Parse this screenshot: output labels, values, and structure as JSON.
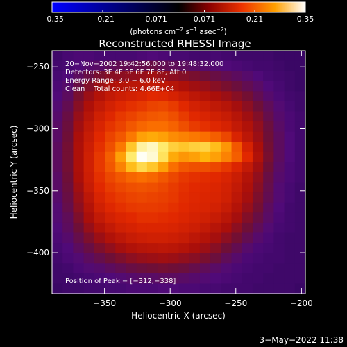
{
  "chart_data": {
    "type": "heatmap",
    "title": "Reconstructed RHESSI Image",
    "xlabel": "Heliocentric X (arcsec)",
    "ylabel": "Heliocentric Y (arcsec)",
    "xlim": [
      -390,
      -197
    ],
    "ylim": [
      -433,
      -237
    ],
    "x_ticks": [
      {
        "value": -350,
        "label": "−350"
      },
      {
        "value": -300,
        "label": "−300"
      },
      {
        "value": -250,
        "label": "−250"
      },
      {
        "value": -200,
        "label": "−200"
      }
    ],
    "y_ticks": [
      {
        "value": -250,
        "label": "−250"
      },
      {
        "value": -300,
        "label": "−300"
      },
      {
        "value": -350,
        "label": "−350"
      },
      {
        "value": -400,
        "label": "−400"
      }
    ],
    "colorbar": {
      "range": [
        -0.35,
        0.35
      ],
      "ticks": [
        {
          "value": -0.35,
          "label": "−0.35"
        },
        {
          "value": -0.21,
          "label": "−0.21"
        },
        {
          "value": -0.071,
          "label": "−0.071"
        },
        {
          "value": 0.071,
          "label": "0.071"
        },
        {
          "value": 0.21,
          "label": "0.21"
        },
        {
          "value": 0.35,
          "label": "0.35"
        }
      ],
      "units": {
        "base": "(photons cm",
        "exp1": "−2",
        "mid1": " s",
        "exp2": "−1",
        "mid2": " asec",
        "exp3": "−2",
        "end": ")"
      }
    },
    "annotations": [
      "20−Nov−2002 19:42:56.000 to 19:48:32.000",
      "Detectors: 3F 4F 5F 6F 7F 8F, Att 0",
      "Energy Range: 3.0 − 6.0 keV",
      "Clean    Total counts: 4.66E+04"
    ],
    "peak_label": "Position of Peak = [−312,−338]",
    "peak": [
      -312,
      -338
    ],
    "source_center": [
      -300,
      -335
    ],
    "source_radius": 100,
    "image_intensity": [
      [
        0.04,
        0.06,
        0.07,
        0.07,
        0.06,
        0.06,
        0.06,
        0.06,
        0.07,
        0.08,
        0.07,
        0.06,
        0.06,
        0.05,
        0.05,
        0.06,
        0.05,
        0.04,
        0.04,
        0.04,
        0.04,
        0.03,
        0.03,
        0.03
      ],
      [
        0.05,
        0.06,
        0.08,
        0.1,
        0.11,
        0.13,
        0.14,
        0.14,
        0.15,
        0.16,
        0.14,
        0.13,
        0.12,
        0.11,
        0.1,
        0.09,
        0.08,
        0.07,
        0.06,
        0.05,
        0.05,
        0.04,
        0.03,
        0.03
      ],
      [
        0.06,
        0.08,
        0.12,
        0.16,
        0.2,
        0.23,
        0.24,
        0.25,
        0.26,
        0.28,
        0.26,
        0.24,
        0.22,
        0.2,
        0.18,
        0.16,
        0.14,
        0.12,
        0.1,
        0.08,
        0.06,
        0.05,
        0.04,
        0.03
      ],
      [
        0.07,
        0.1,
        0.16,
        0.22,
        0.27,
        0.31,
        0.33,
        0.35,
        0.36,
        0.38,
        0.37,
        0.34,
        0.31,
        0.28,
        0.26,
        0.23,
        0.2,
        0.17,
        0.14,
        0.11,
        0.08,
        0.06,
        0.04,
        0.03
      ],
      [
        0.08,
        0.12,
        0.2,
        0.27,
        0.33,
        0.38,
        0.41,
        0.43,
        0.45,
        0.48,
        0.47,
        0.44,
        0.4,
        0.36,
        0.33,
        0.3,
        0.27,
        0.23,
        0.19,
        0.14,
        0.1,
        0.07,
        0.05,
        0.04
      ],
      [
        0.09,
        0.14,
        0.23,
        0.31,
        0.38,
        0.43,
        0.47,
        0.5,
        0.52,
        0.55,
        0.56,
        0.53,
        0.48,
        0.43,
        0.4,
        0.37,
        0.34,
        0.29,
        0.24,
        0.18,
        0.13,
        0.09,
        0.06,
        0.04
      ],
      [
        0.1,
        0.16,
        0.26,
        0.34,
        0.42,
        0.47,
        0.52,
        0.55,
        0.58,
        0.6,
        0.61,
        0.58,
        0.53,
        0.48,
        0.45,
        0.42,
        0.39,
        0.34,
        0.28,
        0.22,
        0.15,
        0.1,
        0.07,
        0.05
      ],
      [
        0.11,
        0.17,
        0.28,
        0.37,
        0.45,
        0.51,
        0.55,
        0.6,
        0.64,
        0.66,
        0.66,
        0.63,
        0.58,
        0.53,
        0.5,
        0.47,
        0.44,
        0.38,
        0.32,
        0.25,
        0.17,
        0.11,
        0.07,
        0.05
      ],
      [
        0.11,
        0.18,
        0.3,
        0.39,
        0.48,
        0.55,
        0.6,
        0.68,
        0.76,
        0.78,
        0.76,
        0.72,
        0.7,
        0.68,
        0.66,
        0.62,
        0.56,
        0.45,
        0.36,
        0.27,
        0.18,
        0.12,
        0.08,
        0.05
      ],
      [
        0.12,
        0.19,
        0.31,
        0.41,
        0.5,
        0.58,
        0.68,
        0.84,
        0.95,
        0.97,
        0.92,
        0.86,
        0.84,
        0.86,
        0.87,
        0.82,
        0.74,
        0.6,
        0.44,
        0.3,
        0.19,
        0.12,
        0.08,
        0.05
      ],
      [
        0.12,
        0.19,
        0.31,
        0.42,
        0.52,
        0.62,
        0.76,
        0.92,
        1.0,
        0.98,
        0.9,
        0.78,
        0.74,
        0.76,
        0.8,
        0.76,
        0.7,
        0.62,
        0.48,
        0.32,
        0.2,
        0.12,
        0.08,
        0.05
      ],
      [
        0.12,
        0.19,
        0.31,
        0.42,
        0.52,
        0.6,
        0.7,
        0.82,
        0.88,
        0.84,
        0.76,
        0.66,
        0.6,
        0.58,
        0.58,
        0.56,
        0.52,
        0.46,
        0.38,
        0.28,
        0.18,
        0.11,
        0.07,
        0.05
      ],
      [
        0.11,
        0.18,
        0.3,
        0.41,
        0.5,
        0.56,
        0.6,
        0.64,
        0.66,
        0.64,
        0.6,
        0.56,
        0.52,
        0.5,
        0.49,
        0.48,
        0.45,
        0.4,
        0.33,
        0.25,
        0.16,
        0.1,
        0.07,
        0.05
      ],
      [
        0.11,
        0.17,
        0.28,
        0.39,
        0.48,
        0.53,
        0.56,
        0.58,
        0.59,
        0.58,
        0.56,
        0.53,
        0.5,
        0.48,
        0.47,
        0.46,
        0.43,
        0.38,
        0.31,
        0.23,
        0.15,
        0.09,
        0.06,
        0.04
      ],
      [
        0.1,
        0.16,
        0.26,
        0.36,
        0.45,
        0.5,
        0.53,
        0.55,
        0.56,
        0.55,
        0.54,
        0.52,
        0.49,
        0.47,
        0.46,
        0.45,
        0.42,
        0.36,
        0.29,
        0.21,
        0.14,
        0.09,
        0.06,
        0.04
      ],
      [
        0.09,
        0.15,
        0.24,
        0.33,
        0.42,
        0.47,
        0.5,
        0.52,
        0.53,
        0.53,
        0.52,
        0.5,
        0.48,
        0.46,
        0.45,
        0.43,
        0.39,
        0.33,
        0.26,
        0.19,
        0.12,
        0.08,
        0.05,
        0.04
      ],
      [
        0.09,
        0.13,
        0.21,
        0.3,
        0.38,
        0.43,
        0.46,
        0.48,
        0.5,
        0.5,
        0.49,
        0.48,
        0.46,
        0.44,
        0.42,
        0.39,
        0.35,
        0.29,
        0.22,
        0.16,
        0.11,
        0.07,
        0.05,
        0.04
      ],
      [
        0.08,
        0.12,
        0.18,
        0.26,
        0.33,
        0.38,
        0.42,
        0.44,
        0.46,
        0.46,
        0.46,
        0.45,
        0.43,
        0.41,
        0.38,
        0.34,
        0.3,
        0.24,
        0.18,
        0.13,
        0.09,
        0.06,
        0.05,
        0.04
      ],
      [
        0.07,
        0.1,
        0.15,
        0.21,
        0.27,
        0.32,
        0.36,
        0.39,
        0.41,
        0.42,
        0.42,
        0.41,
        0.39,
        0.36,
        0.33,
        0.29,
        0.24,
        0.19,
        0.14,
        0.1,
        0.07,
        0.05,
        0.04,
        0.04
      ],
      [
        0.06,
        0.08,
        0.12,
        0.16,
        0.21,
        0.25,
        0.29,
        0.32,
        0.34,
        0.35,
        0.36,
        0.35,
        0.33,
        0.3,
        0.27,
        0.23,
        0.18,
        0.14,
        0.1,
        0.07,
        0.06,
        0.05,
        0.04,
        0.04
      ],
      [
        0.05,
        0.07,
        0.09,
        0.12,
        0.15,
        0.18,
        0.21,
        0.24,
        0.26,
        0.27,
        0.28,
        0.27,
        0.25,
        0.23,
        0.2,
        0.17,
        0.13,
        0.1,
        0.07,
        0.06,
        0.05,
        0.05,
        0.04,
        0.04
      ],
      [
        0.04,
        0.05,
        0.07,
        0.09,
        0.1,
        0.12,
        0.14,
        0.16,
        0.17,
        0.18,
        0.19,
        0.18,
        0.17,
        0.15,
        0.13,
        0.11,
        0.09,
        0.07,
        0.06,
        0.05,
        0.05,
        0.04,
        0.04,
        0.04
      ],
      [
        0.04,
        0.04,
        0.05,
        0.06,
        0.07,
        0.08,
        0.09,
        0.1,
        0.11,
        0.11,
        0.12,
        0.12,
        0.11,
        0.1,
        0.09,
        0.08,
        0.07,
        0.06,
        0.05,
        0.05,
        0.04,
        0.04,
        0.04,
        0.04
      ],
      [
        0.03,
        0.04,
        0.04,
        0.05,
        0.05,
        0.06,
        0.06,
        0.07,
        0.07,
        0.07,
        0.08,
        0.08,
        0.07,
        0.07,
        0.06,
        0.06,
        0.05,
        0.05,
        0.05,
        0.04,
        0.04,
        0.04,
        0.04,
        0.03
      ]
    ]
  },
  "timestamp": "3−May−2022 11:38"
}
